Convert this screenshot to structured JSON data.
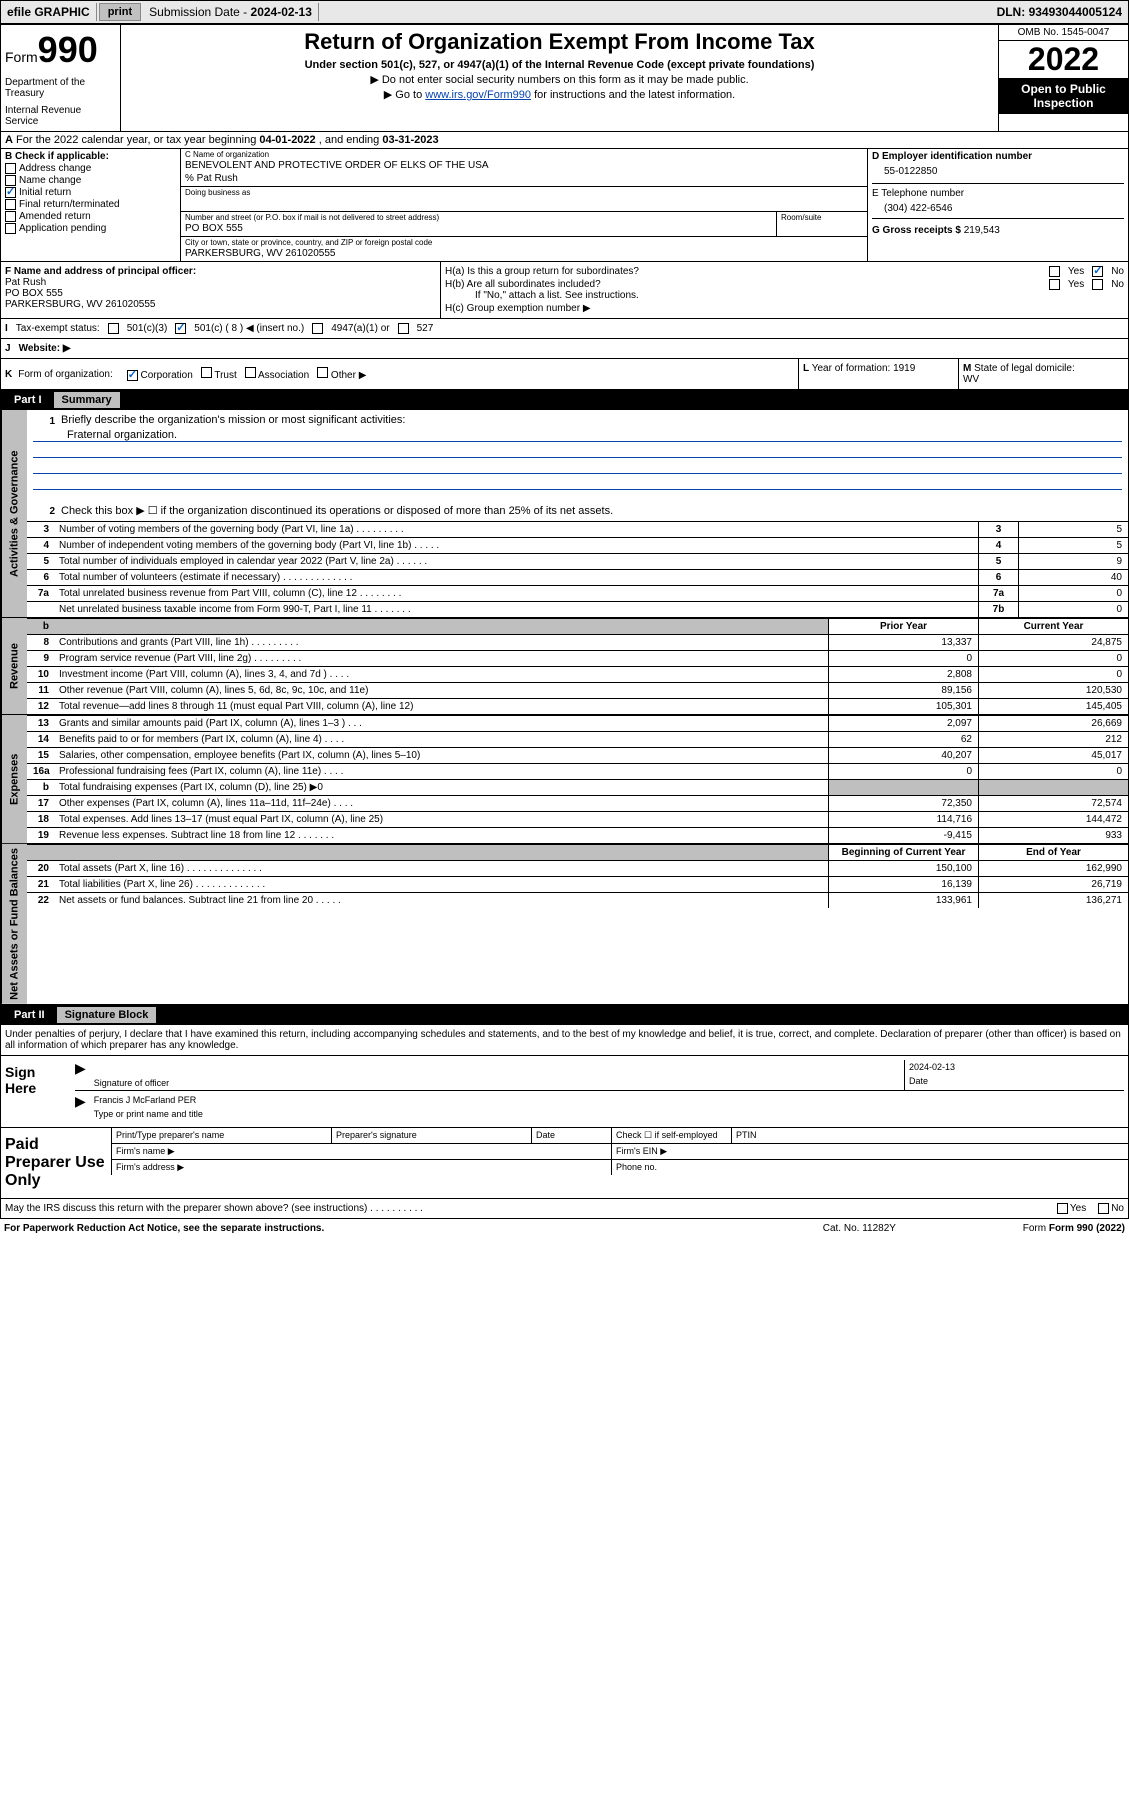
{
  "topbar": {
    "efile": "efile GRAPHIC",
    "print": "print",
    "submission_label": "Submission Date - ",
    "submission_date": "2024-02-13",
    "dln_label": "DLN: ",
    "dln": "93493044005124"
  },
  "header": {
    "form_prefix": "Form",
    "form_number": "990",
    "dept": "Department of the Treasury",
    "irs": "Internal Revenue Service",
    "title": "Return of Organization Exempt From Income Tax",
    "subtitle": "Under section 501(c), 527, or 4947(a)(1) of the Internal Revenue Code (except private foundations)",
    "note1": "Do not enter social security numbers on this form as it may be made public.",
    "note2_pre": "Go to ",
    "note2_link": "www.irs.gov/Form990",
    "note2_post": " for instructions and the latest information.",
    "omb": "OMB No. 1545-0047",
    "year": "2022",
    "open_public": "Open to Public Inspection"
  },
  "line_a": {
    "prefix": "A",
    "text": " For the 2022 calendar year, or tax year beginning ",
    "begin": "04-01-2022",
    "mid": " , and ending ",
    "end": "03-31-2023"
  },
  "box_b": {
    "label": "B Check if applicable:",
    "items": [
      "Address change",
      "Name change",
      "Initial return",
      "Final return/terminated",
      "Amended return",
      "Application pending"
    ],
    "checked_index": 2
  },
  "box_c": {
    "name_label": "C Name of organization",
    "name": "BENEVOLENT AND PROTECTIVE ORDER OF ELKS OF THE USA",
    "care_of": "% Pat Rush",
    "dba_label": "Doing business as",
    "street_label": "Number and street (or P.O. box if mail is not delivered to street address)",
    "room_label": "Room/suite",
    "street": "PO BOX 555",
    "city_label": "City or town, state or province, country, and ZIP or foreign postal code",
    "city": "PARKERSBURG, WV  261020555"
  },
  "box_d": {
    "label": "D Employer identification number",
    "value": "55-0122850"
  },
  "box_e": {
    "label": "E Telephone number",
    "value": "(304) 422-6546"
  },
  "box_g": {
    "label": "G Gross receipts $ ",
    "value": "219,543"
  },
  "box_f": {
    "label": "F Name and address of principal officer:",
    "name": "Pat Rush",
    "street": "PO BOX 555",
    "city": "PARKERSBURG, WV  261020555"
  },
  "box_h": {
    "ha": "H(a)  Is this a group return for subordinates?",
    "hb": "H(b)  Are all subordinates included?",
    "hb_note": "If \"No,\" attach a list. See instructions.",
    "hc": "H(c)  Group exemption number ▶",
    "yes": "Yes",
    "no": "No"
  },
  "line_i": {
    "label": "I",
    "text": "Tax-exempt status:",
    "opt1": "501(c)(3)",
    "opt2_pre": "501(c) ( ",
    "opt2_val": "8",
    "opt2_post": " ) ◀ (insert no.)",
    "opt3": "4947(a)(1) or",
    "opt4": "527"
  },
  "line_j": {
    "label": "J",
    "text": "Website: ▶"
  },
  "line_k": {
    "label": "K",
    "text": "Form of organization:",
    "opts": [
      "Corporation",
      "Trust",
      "Association",
      "Other ▶"
    ],
    "checked": 0
  },
  "line_l": {
    "label": "L",
    "text": "Year of formation: ",
    "value": "1919"
  },
  "line_m": {
    "label": "M",
    "text": "State of legal domicile:",
    "value": "WV"
  },
  "part1": {
    "num": "Part I",
    "title": "Summary",
    "groups": [
      {
        "vert": "Activities & Governance",
        "mission": {
          "num": "1",
          "label": "Briefly describe the organization's mission or most significant activities:",
          "text": "Fraternal organization."
        },
        "check2": {
          "num": "2",
          "text": "Check this box ▶ ☐  if the organization discontinued its operations or disposed of more than 25% of its net assets."
        },
        "rows": [
          {
            "num": "3",
            "text": "Number of voting members of the governing body (Part VI, line 1a)   .    .    .    .    .    .    .    .    .",
            "box": "3",
            "val": "5"
          },
          {
            "num": "4",
            "text": "Number of independent voting members of the governing body (Part VI, line 1b)   .    .    .    .    .",
            "box": "4",
            "val": "5"
          },
          {
            "num": "5",
            "text": "Total number of individuals employed in calendar year 2022 (Part V, line 2a)   .    .    .    .    .    .",
            "box": "5",
            "val": "9"
          },
          {
            "num": "6",
            "text": "Total number of volunteers (estimate if necessary)   .    .    .    .    .    .    .    .    .    .    .    .    .",
            "box": "6",
            "val": "40"
          },
          {
            "num": "7a",
            "text": "Total unrelated business revenue from Part VIII, column (C), line 12   .    .    .    .    .    .    .    .",
            "box": "7a",
            "val": "0"
          },
          {
            "num": "",
            "text": "Net unrelated business taxable income from Form 990-T, Part I, line 11   .    .    .    .    .    .    .",
            "box": "7b",
            "val": "0"
          }
        ]
      },
      {
        "vert": "Revenue",
        "header": {
          "num": "b",
          "col1": "Prior Year",
          "col2": "Current Year"
        },
        "rows": [
          {
            "num": "8",
            "text": "Contributions and grants (Part VIII, line 1h)   .    .    .    .    .    .    .    .    .",
            "c1": "13,337",
            "c2": "24,875"
          },
          {
            "num": "9",
            "text": "Program service revenue (Part VIII, line 2g)   .    .    .    .    .    .    .    .    .",
            "c1": "0",
            "c2": "0"
          },
          {
            "num": "10",
            "text": "Investment income (Part VIII, column (A), lines 3, 4, and 7d )   .    .    .    .",
            "c1": "2,808",
            "c2": "0"
          },
          {
            "num": "11",
            "text": "Other revenue (Part VIII, column (A), lines 5, 6d, 8c, 9c, 10c, and 11e)",
            "c1": "89,156",
            "c2": "120,530"
          },
          {
            "num": "12",
            "text": "Total revenue—add lines 8 through 11 (must equal Part VIII, column (A), line 12)",
            "c1": "105,301",
            "c2": "145,405"
          }
        ]
      },
      {
        "vert": "Expenses",
        "rows": [
          {
            "num": "13",
            "text": "Grants and similar amounts paid (Part IX, column (A), lines 1–3 )   .    .    .",
            "c1": "2,097",
            "c2": "26,669"
          },
          {
            "num": "14",
            "text": "Benefits paid to or for members (Part IX, column (A), line 4)   .    .    .    .",
            "c1": "62",
            "c2": "212"
          },
          {
            "num": "15",
            "text": "Salaries, other compensation, employee benefits (Part IX, column (A), lines 5–10)",
            "c1": "40,207",
            "c2": "45,017"
          },
          {
            "num": "16a",
            "text": "Professional fundraising fees (Part IX, column (A), line 11e)   .    .    .    .",
            "c1": "0",
            "c2": "0"
          },
          {
            "num": "b",
            "text": "Total fundraising expenses (Part IX, column (D), line 25) ▶0",
            "c1": "",
            "c2": "",
            "shaded": true
          },
          {
            "num": "17",
            "text": "Other expenses (Part IX, column (A), lines 11a–11d, 11f–24e)   .    .    .    .",
            "c1": "72,350",
            "c2": "72,574"
          },
          {
            "num": "18",
            "text": "Total expenses. Add lines 13–17 (must equal Part IX, column (A), line 25)",
            "c1": "114,716",
            "c2": "144,472"
          },
          {
            "num": "19",
            "text": "Revenue less expenses. Subtract line 18 from line 12   .    .    .    .    .    .    .",
            "c1": "-9,415",
            "c2": "933"
          }
        ]
      },
      {
        "vert": "Net Assets or Fund Balances",
        "header": {
          "col1": "Beginning of Current Year",
          "col2": "End of Year"
        },
        "rows": [
          {
            "num": "20",
            "text": "Total assets (Part X, line 16)   .    .    .    .    .    .    .    .    .    .    .    .    .    .",
            "c1": "150,100",
            "c2": "162,990"
          },
          {
            "num": "21",
            "text": "Total liabilities (Part X, line 26)   .    .    .    .    .    .    .    .    .    .    .    .    .",
            "c1": "16,139",
            "c2": "26,719"
          },
          {
            "num": "22",
            "text": "Net assets or fund balances. Subtract line 21 from line 20   .    .    .    .    .",
            "c1": "133,961",
            "c2": "136,271"
          }
        ]
      }
    ]
  },
  "part2": {
    "num": "Part II",
    "title": "Signature Block",
    "intro": "Under penalties of perjury, I declare that I have examined this return, including accompanying schedules and statements, and to the best of my knowledge and belief, it is true, correct, and complete. Declaration of preparer (other than officer) is based on all information of which preparer has any knowledge."
  },
  "sign": {
    "label": "Sign Here",
    "sig_label": "Signature of officer",
    "date_label": "Date",
    "date": "2024-02-13",
    "name": "Francis J McFarland  PER",
    "name_label": "Type or print name and title"
  },
  "paid": {
    "label": "Paid Preparer Use Only",
    "h1": "Print/Type preparer's name",
    "h2": "Preparer's signature",
    "h3": "Date",
    "h4": "Check ☐ if self-employed",
    "h5": "PTIN",
    "firm_name": "Firm's name  ▶",
    "firm_ein": "Firm's EIN ▶",
    "firm_addr": "Firm's address ▶",
    "phone": "Phone no."
  },
  "footer": {
    "discuss": "May the IRS discuss this return with the preparer shown above? (see instructions)   .    .    .    .    .    .    .    .    .    .",
    "yes": "Yes",
    "no": "No",
    "paperwork": "For Paperwork Reduction Act Notice, see the separate instructions.",
    "cat": "Cat. No. 11282Y",
    "form": "Form 990 (2022)"
  }
}
